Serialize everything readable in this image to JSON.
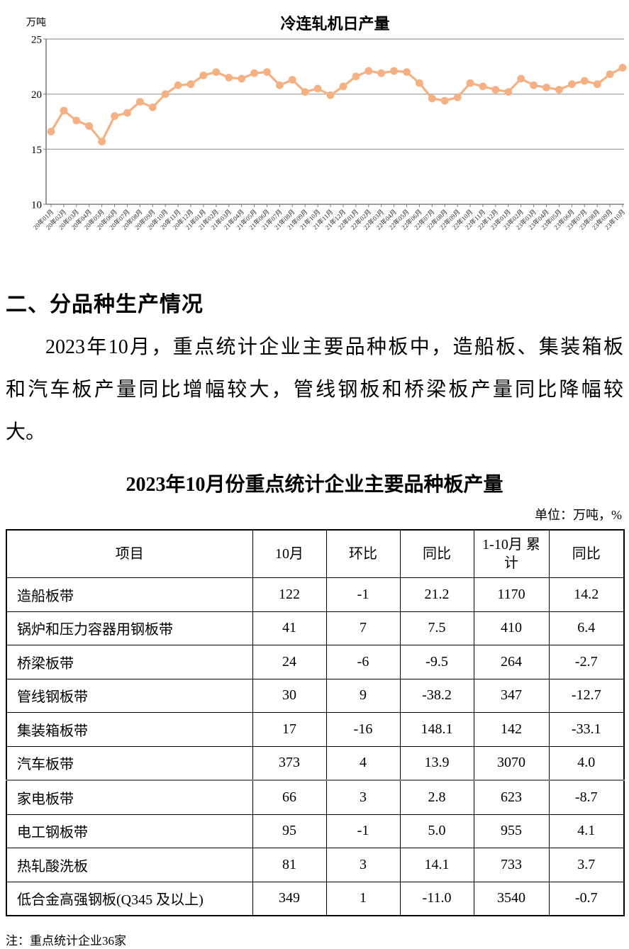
{
  "page": {
    "section_heading": "二、分品种生产情况",
    "paragraph_lines": [
      "2023年10月，重点统计企业主要品种板中，造船板、集装箱板",
      "和汽车板产量同比增幅较大，管线钢板和桥梁板产量同比降幅较",
      "大。"
    ],
    "footnote": "注：重点统计企业36家"
  },
  "chart_data": {
    "type": "line",
    "title": "冷连轧机日产量",
    "ylabel": "万吨",
    "xlabel": "",
    "ylim": [
      10,
      25
    ],
    "yticks": [
      10,
      15,
      20,
      25
    ],
    "grid": true,
    "legend": "none",
    "series_color": "#F5B183",
    "marker": "circle",
    "x": [
      "20年01月",
      "20年02月",
      "20年03月",
      "20年04月",
      "20年05月",
      "20年06月",
      "20年07月",
      "20年08月",
      "20年09月",
      "20年10月",
      "20年11月",
      "20年12月",
      "21年01月",
      "21年02月",
      "21年03月",
      "21年04月",
      "21年05月",
      "21年06月",
      "21年07月",
      "21年08月",
      "21年09月",
      "21年10月",
      "21年11月",
      "21年12月",
      "22年01月",
      "22年02月",
      "22年03月",
      "22年04月",
      "22年05月",
      "22年06月",
      "22年07月",
      "22年08月",
      "22年09月",
      "22年10月",
      "22年11月",
      "22年12月",
      "23年01月",
      "23年02月",
      "23年03月",
      "23年04月",
      "23年05月",
      "23年06月",
      "23年07月",
      "23年08月",
      "23年09月",
      "23年10月"
    ],
    "values": [
      16.6,
      18.5,
      17.6,
      17.1,
      15.7,
      18.0,
      18.3,
      19.3,
      18.8,
      20.0,
      20.8,
      20.9,
      21.7,
      22.0,
      21.5,
      21.4,
      21.9,
      22.0,
      20.8,
      21.3,
      20.2,
      20.5,
      19.9,
      20.7,
      21.6,
      22.1,
      21.9,
      22.1,
      22.0,
      21.0,
      19.6,
      19.4,
      19.7,
      21.0,
      20.7,
      20.4,
      20.2,
      21.4,
      20.8,
      20.6,
      20.4,
      20.9,
      21.2,
      20.9,
      21.8,
      22.4
    ]
  },
  "table": {
    "title": "2023年10月份重点统计企业主要品种板产量",
    "unit_note": "单位：万吨，%",
    "headers": [
      "项目",
      "10月",
      "环比",
      "同比",
      "1-10月 累计",
      "同比"
    ],
    "rows": [
      [
        "造船板带",
        "122",
        "-1",
        "21.2",
        "1170",
        "14.2"
      ],
      [
        "锅炉和压力容器用钢板带",
        "41",
        "7",
        "7.5",
        "410",
        "6.4"
      ],
      [
        "桥梁板带",
        "24",
        "-6",
        "-9.5",
        "264",
        "-2.7"
      ],
      [
        "管线钢板带",
        "30",
        "9",
        "-38.2",
        "347",
        "-12.7"
      ],
      [
        "集装箱板带",
        "17",
        "-16",
        "148.1",
        "142",
        "-33.1"
      ],
      [
        "汽车板带",
        "373",
        "4",
        "13.9",
        "3070",
        "4.0"
      ],
      [
        "家电板带",
        "66",
        "3",
        "2.8",
        "623",
        "-8.7"
      ],
      [
        "电工钢板带",
        "95",
        "-1",
        "5.0",
        "955",
        "4.1"
      ],
      [
        "热轧酸洗板",
        "81",
        "3",
        "14.1",
        "733",
        "3.7"
      ],
      [
        "低合金高强钢板(Q345 及以上)",
        "349",
        "1",
        "-11.0",
        "3540",
        "-0.7"
      ]
    ]
  }
}
